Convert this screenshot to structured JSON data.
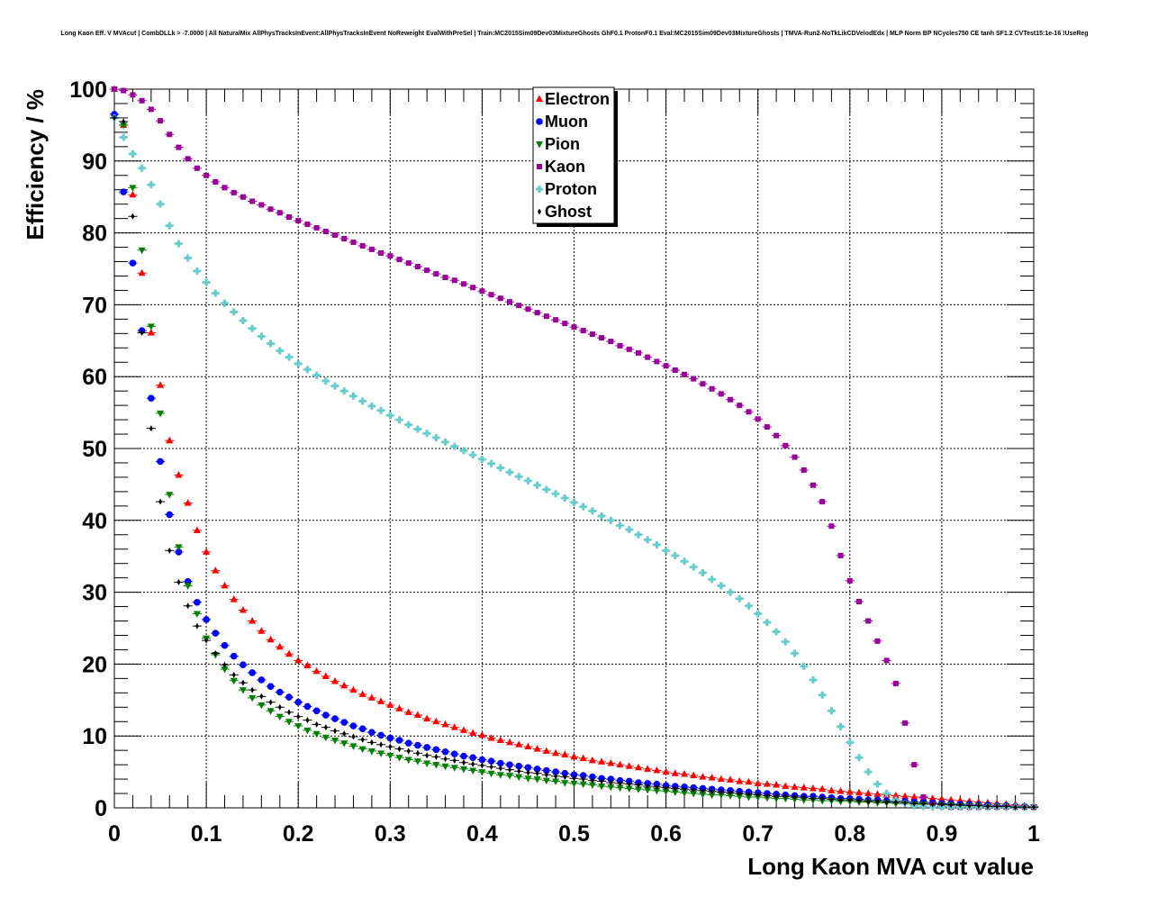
{
  "page_title": "Long Kaon Eff. V MVAcut | CombDLLk > -7.0000 | All NaturalMix AllPhysTracksInEvent:AllPhysTracksInEvent NoReweight EvalWithPreSel | Train:MC2015Sim09Dev03MixtureGhosts GhF0.1 ProtonF0.1 Eval:MC2015Sim09Dev03MixtureGhosts | TMVA-Run2-NoTkLikCDVelodEdx | MLP Norm BP NCycles750 CE tanh SF1.2 CVTest15:1e-16 !UseReg",
  "chart_data": {
    "type": "scatter",
    "xlabel": "Long Kaon MVA cut value",
    "ylabel": "Efficiency / %",
    "xlim": [
      0,
      1
    ],
    "ylim": [
      0,
      100
    ],
    "xticks": [
      "0",
      "0.1",
      "0.2",
      "0.3",
      "0.4",
      "0.5",
      "0.6",
      "0.7",
      "0.8",
      "0.9",
      "1"
    ],
    "yticks": [
      "0",
      "10",
      "20",
      "30",
      "40",
      "50",
      "60",
      "70",
      "80",
      "90",
      "100"
    ],
    "grid": true,
    "legend_position": "top-center",
    "x_step": 0.01,
    "x_start": 0.0,
    "series": [
      {
        "name": "Electron",
        "color": "#ff0000",
        "marker": "triangle-up",
        "values": [
          100,
          95,
          85.3,
          74.4,
          66.1,
          58.8,
          51.1,
          46.3,
          42.4,
          38.6,
          35.6,
          33,
          30.9,
          29,
          27.5,
          26,
          24.6,
          23.4,
          22.4,
          21.4,
          20.5,
          19.8,
          19,
          18.3,
          17.6,
          17,
          16.4,
          15.8,
          15.3,
          14.8,
          14.3,
          13.8,
          13.3,
          12.9,
          12.4,
          12,
          11.6,
          11.2,
          10.8,
          10.4,
          10.1,
          9.7,
          9.4,
          9.1,
          8.8,
          8.5,
          8.2,
          7.9,
          7.6,
          7.4,
          7.1,
          6.9,
          6.6,
          6.4,
          6.2,
          6,
          5.8,
          5.6,
          5.4,
          5.2,
          5,
          4.8,
          4.7,
          4.5,
          4.3,
          4.2,
          4,
          3.9,
          3.7,
          3.6,
          3.4,
          3.3,
          3.2,
          3,
          2.9,
          2.8,
          2.7,
          2.6,
          2.4,
          2.3,
          2.2,
          2.1,
          2,
          1.9,
          1.8,
          1.7,
          1.6,
          1.5,
          1.4,
          1.3,
          1.2,
          1.1,
          1,
          0.9,
          0.8,
          0.7,
          0.6,
          0.5,
          0.4,
          0.3,
          0.2
        ]
      },
      {
        "name": "Muon",
        "color": "#0000ff",
        "marker": "circle",
        "values": [
          96.5,
          85.7,
          75.8,
          66.4,
          57,
          48.2,
          40.8,
          35.6,
          31.5,
          28.6,
          26.2,
          24.3,
          22.6,
          21.1,
          19.9,
          18.8,
          17.8,
          16.9,
          16.1,
          15.4,
          14.7,
          14.1,
          13.5,
          12.9,
          12.4,
          11.9,
          11.4,
          11,
          10.5,
          10.1,
          9.7,
          9.4,
          9,
          8.7,
          8.4,
          8.1,
          7.8,
          7.5,
          7.2,
          7,
          6.7,
          6.5,
          6.2,
          6,
          5.8,
          5.6,
          5.4,
          5.2,
          5,
          4.8,
          4.6,
          4.5,
          4.3,
          4.1,
          4,
          3.8,
          3.7,
          3.5,
          3.4,
          3.3,
          3.1,
          3,
          2.9,
          2.8,
          2.7,
          2.6,
          2.5,
          2.4,
          2.3,
          2.2,
          2.1,
          2,
          1.9,
          1.8,
          1.7,
          1.6,
          1.6,
          1.5,
          1.4,
          1.3,
          1.3,
          1.2,
          1.1,
          1.1,
          1,
          0.9,
          0.9,
          0.8,
          0.8,
          0.7,
          0.6,
          0.6,
          0.5,
          0.5,
          0.4,
          0.4,
          0.3,
          0.3,
          0.2,
          0.2,
          0.1
        ]
      },
      {
        "name": "Pion",
        "color": "#008000",
        "marker": "triangle-down",
        "values": [
          100,
          95,
          86.3,
          77.6,
          67,
          54.9,
          43.6,
          36.3,
          30.9,
          27,
          23.6,
          21.3,
          19.3,
          17.7,
          16.4,
          15.3,
          14.3,
          13.5,
          12.7,
          12,
          11.4,
          10.8,
          10.3,
          9.8,
          9.4,
          9,
          8.6,
          8.2,
          7.9,
          7.6,
          7.3,
          7,
          6.7,
          6.5,
          6.2,
          6,
          5.8,
          5.6,
          5.4,
          5.2,
          5,
          4.8,
          4.6,
          4.5,
          4.3,
          4.1,
          4,
          3.8,
          3.7,
          3.5,
          3.4,
          3.3,
          3.2,
          3,
          2.9,
          2.8,
          2.7,
          2.6,
          2.5,
          2.4,
          2.3,
          2.2,
          2.1,
          2,
          1.9,
          1.8,
          1.8,
          1.7,
          1.6,
          1.5,
          1.5,
          1.4,
          1.3,
          1.3,
          1.2,
          1.1,
          1.1,
          1,
          1,
          0.9,
          0.9,
          0.8,
          0.8,
          0.7,
          0.7,
          0.6,
          0.6,
          0.5,
          0.5,
          0.5,
          0.4,
          0.4,
          0.3,
          0.3,
          0.3,
          0.2,
          0.2,
          0.2,
          0.1,
          0.1,
          0.1
        ]
      },
      {
        "name": "Kaon",
        "color": "#990099",
        "marker": "square",
        "values": [
          100,
          99.8,
          99.2,
          98.4,
          97.2,
          95.6,
          93.7,
          91.9,
          90.3,
          89,
          88,
          87.1,
          86.3,
          85.6,
          85,
          84.4,
          83.9,
          83.3,
          82.8,
          82.2,
          81.7,
          81.2,
          80.7,
          80.2,
          79.7,
          79.2,
          78.7,
          78.2,
          77.7,
          77.2,
          76.8,
          76.3,
          75.8,
          75.3,
          74.8,
          74.3,
          73.8,
          73.4,
          72.9,
          72.4,
          71.9,
          71.4,
          70.9,
          70.4,
          69.9,
          69.4,
          68.9,
          68.4,
          67.9,
          67.4,
          66.9,
          66.4,
          65.9,
          65.4,
          64.9,
          64.3,
          63.8,
          63.3,
          62.7,
          62.1,
          61.5,
          60.9,
          60.3,
          59.7,
          59,
          58.3,
          57.6,
          56.8,
          56,
          55.1,
          54.1,
          53,
          51.8,
          50.4,
          48.8,
          47,
          44.9,
          42.6,
          39.2,
          35.1,
          31.6,
          28.7,
          26,
          23.2,
          20.5,
          17.3,
          11.8,
          6,
          1.5,
          0.5,
          0.2,
          0.1,
          0.1,
          0.1,
          0.1,
          0.1,
          0.1,
          0.1,
          0.1,
          0.1,
          0.1
        ]
      },
      {
        "name": "Proton",
        "color": "#66cccc",
        "marker": "cross",
        "values": [
          96,
          93.3,
          91,
          89,
          86.7,
          84,
          81,
          78.5,
          76.5,
          74.7,
          73.1,
          71.6,
          70.2,
          69,
          67.8,
          66.7,
          65.6,
          64.6,
          63.6,
          62.7,
          61.8,
          61,
          60.2,
          59.4,
          58.7,
          58,
          57.3,
          56.6,
          55.9,
          55.3,
          54.6,
          54,
          53.3,
          52.7,
          52.1,
          51.5,
          50.9,
          50.3,
          49.7,
          49.1,
          48.5,
          47.9,
          47.3,
          46.7,
          46.1,
          45.5,
          44.9,
          44.3,
          43.7,
          43.1,
          42.5,
          41.9,
          41.3,
          40.6,
          40,
          39.3,
          38.7,
          38,
          37.3,
          36.6,
          35.8,
          35.1,
          34.3,
          33.5,
          32.7,
          31.8,
          30.9,
          30,
          29.1,
          28.1,
          27,
          25.8,
          24.5,
          23.1,
          21.5,
          19.7,
          17.8,
          15.7,
          13.5,
          11.3,
          9.1,
          7,
          5,
          3.3,
          2,
          1.1,
          0.6,
          0.3,
          0.2,
          0.1,
          0.1,
          0.1,
          0.1,
          0.1,
          0.1,
          0.1,
          0.1,
          0.1,
          0.1,
          0.1,
          0.1
        ]
      },
      {
        "name": "Ghost",
        "color": "#000000",
        "marker": "diamond",
        "values": [
          96,
          95.5,
          82.3,
          66.1,
          52.8,
          42.6,
          35.8,
          31.4,
          28.1,
          25.3,
          23.3,
          21.5,
          19.9,
          18.5,
          17.4,
          16.4,
          15.5,
          14.7,
          14,
          13.3,
          12.7,
          12.2,
          11.6,
          11.2,
          10.7,
          10.3,
          9.9,
          9.5,
          9.1,
          8.8,
          8.5,
          8.2,
          7.9,
          7.6,
          7.3,
          7.1,
          6.8,
          6.6,
          6.3,
          6.1,
          5.9,
          5.7,
          5.5,
          5.3,
          5.1,
          4.9,
          4.8,
          4.6,
          4.4,
          4.3,
          4.1,
          4,
          3.8,
          3.7,
          3.5,
          3.4,
          3.3,
          3.2,
          3,
          2.9,
          2.8,
          2.7,
          2.6,
          2.5,
          2.4,
          2.3,
          2.2,
          2.1,
          2,
          1.9,
          1.8,
          1.7,
          1.6,
          1.6,
          1.5,
          1.4,
          1.3,
          1.3,
          1.2,
          1.1,
          1.1,
          1,
          0.9,
          0.9,
          0.8,
          0.8,
          0.7,
          0.6,
          0.6,
          0.5,
          0.5,
          0.4,
          0.4,
          0.3,
          0.3,
          0.2,
          0.2,
          0.2,
          0.1,
          0.1,
          0.1
        ]
      }
    ]
  }
}
